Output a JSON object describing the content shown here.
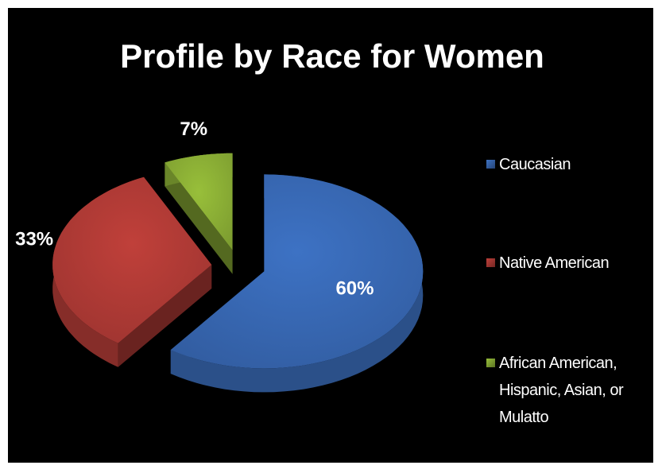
{
  "chart_data": {
    "type": "pie3d",
    "title": "Profile by Race for Women",
    "categories": [
      "Caucasian",
      "Native American",
      "African American, Hispanic, Asian, or Mulatto"
    ],
    "values": [
      60,
      33,
      7
    ],
    "value_labels": [
      "60%",
      "33%",
      "7%"
    ],
    "colors": [
      "#3d72c4",
      "#c0403a",
      "#98bf3a"
    ],
    "legend": "right"
  }
}
